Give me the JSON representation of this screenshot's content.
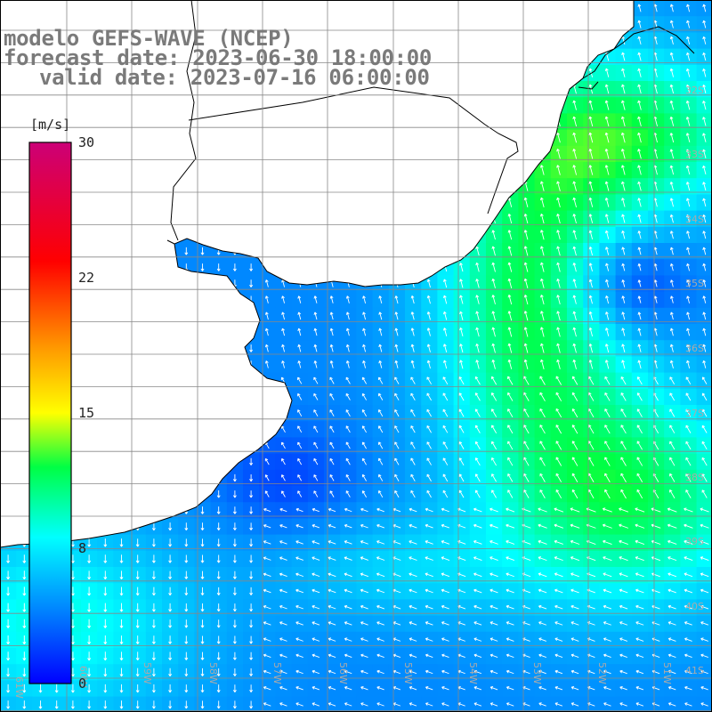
{
  "header": {
    "line1": "modelo GEFS-WAVE (NCEP)",
    "line2": "forecast date: 2023-06-30 18:00:00",
    "line3": "valid date: 2023-07-16 06:00:00"
  },
  "colorbar": {
    "unit": "[m/s]",
    "ticks": [
      {
        "label": "30",
        "value": 30
      },
      {
        "label": "22",
        "value": 22
      },
      {
        "label": "15",
        "value": 15
      },
      {
        "label": "8",
        "value": 8
      },
      {
        "label": "0",
        "value": 0
      }
    ],
    "colors": [
      "#0000ff",
      "#00aaff",
      "#00ffff",
      "#00ff00",
      "#ffff00",
      "#ff8800",
      "#ff0000",
      "#cc0088"
    ]
  },
  "axes": {
    "lon_labels": [
      "61W",
      "60W",
      "59W",
      "58W",
      "57W",
      "56W",
      "55W",
      "54W",
      "53W",
      "52W",
      "51W"
    ],
    "lat_labels": [
      "32S",
      "33S",
      "34S",
      "35S",
      "36S",
      "37S",
      "38S",
      "39S",
      "40S",
      "41S"
    ]
  },
  "map_colors": {
    "land": "#ffffff",
    "coast": "#000000",
    "grid": "#888888",
    "arrow": "#ffffff"
  }
}
